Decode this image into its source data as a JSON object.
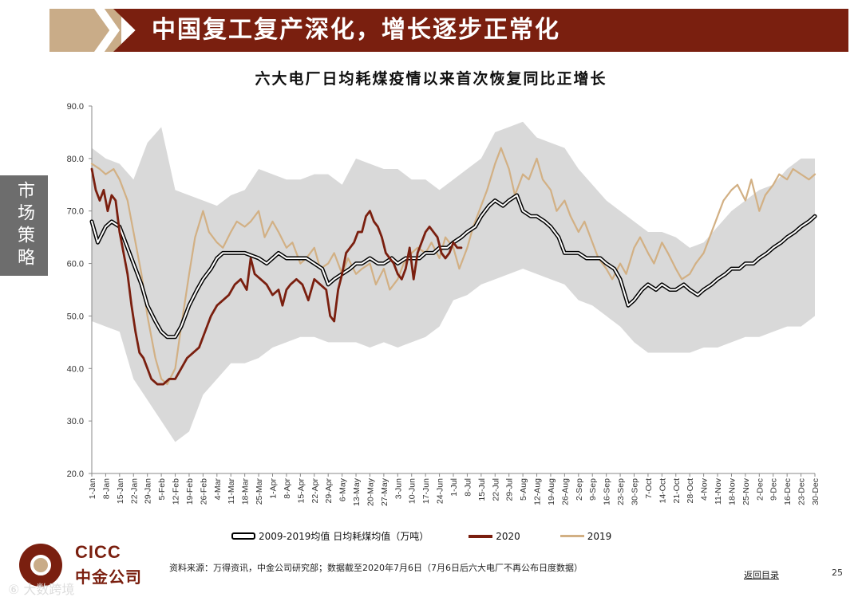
{
  "banner": {
    "title": "中国复工复产深化，增长逐步正常化"
  },
  "side_tab": {
    "label": "市场策略"
  },
  "chart_data": {
    "type": "line",
    "title": "六大电厂日均耗煤疫情以来首次恢复同比正增长",
    "ylim": [
      20.0,
      90.0
    ],
    "yticks": [
      "90.0",
      "80.0",
      "70.0",
      "60.0",
      "50.0",
      "40.0",
      "30.0",
      "20.0"
    ],
    "ytick_values": [
      90,
      80,
      70,
      60,
      50,
      40,
      30,
      20
    ],
    "xticks": [
      "1-Jan",
      "8-Jan",
      "15-Jan",
      "22-Jan",
      "29-Jan",
      "5-Feb",
      "12-Feb",
      "19-Feb",
      "26-Feb",
      "4-Mar",
      "11-Mar",
      "18-Mar",
      "25-Mar",
      "1-Apr",
      "8-Apr",
      "15-Apr",
      "22-Apr",
      "29-Apr",
      "6-May",
      "13-May",
      "20-May",
      "27-May",
      "3-Jun",
      "10-Jun",
      "17-Jun",
      "24-Jun",
      "1-Jul",
      "8-Jul",
      "15-Jul",
      "22-Jul",
      "29-Jul",
      "5-Aug",
      "12-Aug",
      "19-Aug",
      "26-Aug",
      "2-Sep",
      "9-Sep",
      "16-Sep",
      "23-Sep",
      "30-Sep",
      "7-Oct",
      "14-Oct",
      "21-Oct",
      "28-Oct",
      "4-Nov",
      "11-Nov",
      "18-Nov",
      "25-Nov",
      "2-Dec",
      "9-Dec",
      "16-Dec",
      "23-Dec",
      "30-Dec"
    ],
    "x_day_range": [
      0,
      364
    ],
    "range_band": {
      "name": "2009-2019 range",
      "days": [
        0,
        7,
        14,
        21,
        28,
        35,
        42,
        49,
        56,
        63,
        70,
        77,
        84,
        91,
        98,
        105,
        112,
        119,
        126,
        133,
        140,
        147,
        154,
        161,
        168,
        175,
        182,
        189,
        196,
        203,
        210,
        217,
        224,
        231,
        238,
        245,
        252,
        259,
        266,
        273,
        280,
        287,
        294,
        301,
        308,
        315,
        322,
        329,
        336,
        343,
        350,
        357,
        364
      ],
      "upper": [
        82,
        80,
        79,
        76,
        83,
        86,
        74,
        73,
        72,
        71,
        73,
        74,
        78,
        77,
        76,
        76,
        77,
        77,
        75,
        80,
        79,
        78,
        78,
        76,
        76,
        74,
        76,
        78,
        80,
        85,
        86,
        87,
        84,
        83,
        82,
        78,
        75,
        72,
        70,
        68,
        66,
        66,
        65,
        63,
        64,
        67,
        70,
        72,
        74,
        75,
        78,
        80,
        80
      ],
      "lower": [
        49,
        48,
        47,
        38,
        34,
        30,
        26,
        28,
        35,
        38,
        41,
        41,
        42,
        44,
        45,
        46,
        46,
        45,
        45,
        45,
        44,
        45,
        44,
        45,
        46,
        48,
        53,
        54,
        56,
        57,
        58,
        59,
        58,
        57,
        56,
        53,
        52,
        50,
        48,
        45,
        43,
        43,
        43,
        43,
        44,
        44,
        45,
        46,
        46,
        47,
        48,
        48,
        50
      ]
    },
    "series": [
      {
        "name": "2009-2019均值 日均耗煤均值（万吨）",
        "color": "#000000",
        "days": [
          0,
          3,
          7,
          10,
          14,
          18,
          21,
          25,
          28,
          32,
          35,
          38,
          42,
          45,
          49,
          53,
          56,
          60,
          63,
          66,
          70,
          74,
          77,
          84,
          88,
          91,
          94,
          98,
          101,
          105,
          108,
          112,
          116,
          119,
          122,
          126,
          130,
          133,
          136,
          140,
          144,
          147,
          151,
          154,
          158,
          161,
          165,
          168,
          172,
          175,
          179,
          182,
          186,
          189,
          193,
          196,
          200,
          203,
          207,
          210,
          214,
          217,
          221,
          224,
          228,
          231,
          235,
          238,
          242,
          245,
          249,
          252,
          256,
          259,
          263,
          266,
          270,
          273,
          277,
          280,
          284,
          287,
          291,
          294,
          298,
          301,
          305,
          308,
          312,
          315,
          319,
          322,
          326,
          329,
          333,
          336,
          340,
          343,
          347,
          350,
          354,
          357,
          361,
          364
        ],
        "values": [
          68,
          64,
          67,
          68,
          67,
          63,
          60,
          56,
          52,
          49,
          47,
          46,
          46,
          48,
          52,
          55,
          57,
          59,
          61,
          62,
          62,
          62,
          62,
          61,
          60,
          61,
          62,
          61,
          61,
          61,
          61,
          60,
          59,
          56,
          57,
          58,
          59,
          60,
          60,
          61,
          60,
          60,
          61,
          60,
          61,
          61,
          61,
          62,
          62,
          63,
          63,
          64,
          65,
          66,
          67,
          69,
          71,
          72,
          71,
          72,
          73,
          70,
          69,
          69,
          68,
          67,
          65,
          62,
          62,
          62,
          61,
          61,
          61,
          60,
          59,
          57,
          52,
          53,
          55,
          56,
          55,
          56,
          55,
          55,
          56,
          55,
          54,
          55,
          56,
          57,
          58,
          59,
          59,
          60,
          60,
          61,
          62,
          63,
          64,
          65,
          66,
          67,
          68,
          69
        ]
      },
      {
        "name": "2020",
        "color": "#7a1f0f",
        "days": [
          0,
          2,
          4,
          6,
          8,
          10,
          12,
          14,
          16,
          18,
          20,
          22,
          24,
          26,
          28,
          30,
          33,
          36,
          39,
          42,
          45,
          48,
          51,
          54,
          57,
          60,
          63,
          66,
          69,
          72,
          75,
          78,
          80,
          82,
          85,
          88,
          91,
          94,
          96,
          98,
          100,
          103,
          106,
          109,
          112,
          115,
          118,
          120,
          122,
          124,
          126,
          128,
          130,
          132,
          134,
          136,
          138,
          140,
          142,
          144,
          146,
          148,
          150,
          152,
          154,
          156,
          158,
          160,
          162,
          164,
          166,
          168,
          170,
          172,
          174,
          176,
          178,
          180,
          182,
          184,
          186
        ],
        "values": [
          78,
          74,
          72,
          74,
          70,
          73,
          72,
          66,
          62,
          58,
          52,
          47,
          43,
          42,
          40,
          38,
          37,
          37,
          38,
          38,
          40,
          42,
          43,
          44,
          47,
          50,
          52,
          53,
          54,
          56,
          57,
          55,
          61,
          58,
          57,
          56,
          54,
          55,
          52,
          55,
          56,
          57,
          56,
          53,
          57,
          56,
          55,
          50,
          49,
          55,
          58,
          62,
          63,
          64,
          66,
          66,
          69,
          70,
          68,
          67,
          65,
          62,
          61,
          60,
          58,
          57,
          59,
          63,
          57,
          62,
          64,
          66,
          67,
          66,
          65,
          62,
          61,
          62,
          64,
          63,
          63
        ]
      },
      {
        "name": "2019",
        "color": "#d2b084",
        "days": [
          0,
          4,
          7,
          11,
          14,
          18,
          21,
          25,
          28,
          32,
          35,
          38,
          42,
          45,
          49,
          52,
          56,
          59,
          63,
          66,
          70,
          73,
          77,
          80,
          84,
          87,
          91,
          94,
          98,
          101,
          105,
          108,
          112,
          115,
          119,
          122,
          126,
          129,
          133,
          136,
          140,
          143,
          147,
          150,
          154,
          157,
          161,
          164,
          168,
          171,
          175,
          178,
          182,
          185,
          189,
          192,
          196,
          199,
          203,
          206,
          210,
          213,
          217,
          220,
          224,
          227,
          231,
          234,
          238,
          241,
          245,
          248,
          252,
          255,
          259,
          262,
          266,
          269,
          273,
          276,
          280,
          283,
          287,
          290,
          294,
          297,
          301,
          304,
          308,
          311,
          315,
          318,
          322,
          325,
          329,
          332,
          336,
          339,
          343,
          346,
          350,
          353,
          357,
          361,
          364
        ],
        "values": [
          79,
          78,
          77,
          78,
          76,
          72,
          66,
          58,
          50,
          42,
          38,
          37,
          40,
          48,
          58,
          65,
          70,
          66,
          64,
          63,
          66,
          68,
          67,
          68,
          70,
          65,
          68,
          66,
          63,
          64,
          60,
          61,
          63,
          59,
          60,
          62,
          58,
          61,
          58,
          59,
          60,
          56,
          59,
          55,
          57,
          60,
          62,
          63,
          62,
          64,
          61,
          65,
          63,
          59,
          63,
          67,
          71,
          74,
          79,
          82,
          78,
          73,
          77,
          76,
          80,
          76,
          74,
          70,
          72,
          69,
          66,
          68,
          64,
          61,
          59,
          57,
          60,
          58,
          63,
          65,
          62,
          60,
          64,
          62,
          59,
          57,
          58,
          60,
          62,
          65,
          69,
          72,
          74,
          75,
          72,
          76,
          70,
          73,
          75,
          77,
          76,
          78,
          77,
          76,
          77
        ]
      }
    ],
    "legend": [
      "2009-2019均值 日均耗煤均值（万吨）",
      "2020",
      "2019"
    ]
  },
  "footer": {
    "source": "资料来源：万得资讯，中金公司研究部；数据截至2020年7月6日（7月6日后六大电厂不再公布日度数据）",
    "back_link": "返回目录",
    "page_number": "25",
    "logo_en": "CICC",
    "logo_cn": "中金公司",
    "watermark": "⑥ 大数跨境"
  },
  "colors": {
    "banner_main": "#7a1f0f",
    "banner_accent": "#c9ac88",
    "band": "#d9d9d9",
    "avg_line": "#000000",
    "line_2020": "#7a1f0f",
    "line_2019": "#d2b084"
  }
}
